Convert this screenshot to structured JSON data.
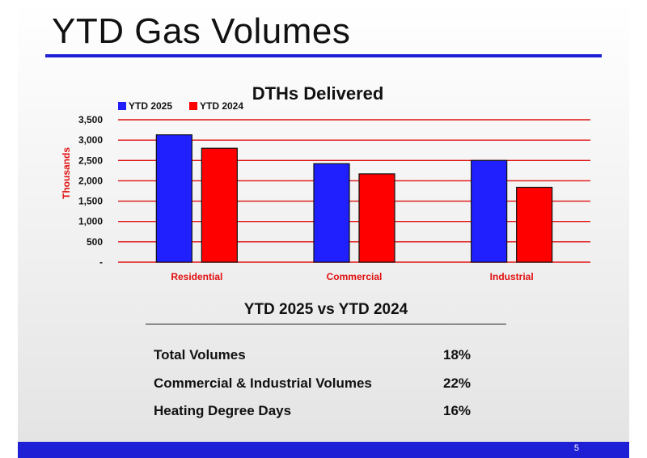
{
  "slide": {
    "title": "YTD Gas Volumes",
    "page_number": "5",
    "colors": {
      "accent": "#1f1fd6",
      "series_2025": "#2020ff",
      "series_2024": "#ff0000",
      "grid": "#e01010"
    }
  },
  "chart_data": {
    "type": "bar",
    "title": "DTHs Delivered",
    "categories": [
      "Residential",
      "Commercial",
      "Industrial"
    ],
    "series": [
      {
        "name": "YTD 2025",
        "values": [
          3130,
          2420,
          2500
        ],
        "color": "#2020ff"
      },
      {
        "name": "YTD 2024",
        "values": [
          2800,
          2170,
          1840
        ],
        "color": "#ff0000"
      }
    ],
    "ylabel": "Thousands",
    "xlabel": "",
    "ylim": [
      0,
      3500
    ],
    "yticks": [
      0,
      500,
      1000,
      1500,
      2000,
      2500,
      3000,
      3500
    ],
    "ytick_labels": [
      "-",
      "500",
      "1,000",
      "1,500",
      "2,000",
      "2,500",
      "3,000",
      "3,500"
    ],
    "grid": true,
    "legend_position": "top-left"
  },
  "summary": {
    "title": "YTD 2025 vs YTD 2024",
    "rows": [
      {
        "label": "Total Volumes",
        "value": "18%"
      },
      {
        "label": "Commercial & Industrial Volumes",
        "value": "22%"
      },
      {
        "label": "Heating Degree Days",
        "value": "16%"
      }
    ]
  }
}
